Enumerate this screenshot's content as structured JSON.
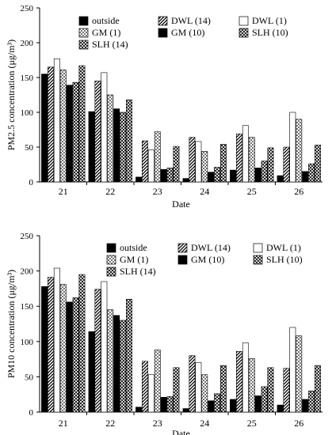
{
  "chart_data": [
    {
      "type": "bar",
      "ylabel": "PM2.5 concentration (μg/m³)",
      "xlabel": "Date",
      "ylim": [
        0,
        250
      ],
      "yticks": [
        0,
        50,
        100,
        150,
        200,
        250
      ],
      "categories": [
        "21",
        "22",
        "23",
        "24",
        "25",
        "26"
      ],
      "legend_position": "top-right",
      "series": [
        {
          "name": "outside",
          "values": [
            155,
            101,
            7,
            5,
            17,
            9
          ]
        },
        {
          "name": "DWL (14)",
          "values": [
            165,
            145,
            59,
            64,
            69,
            50
          ]
        },
        {
          "name": "DWL (1)",
          "values": [
            177,
            157,
            46,
            58,
            81,
            100
          ]
        },
        {
          "name": "GM (1)",
          "values": [
            161,
            125,
            72,
            44,
            64,
            90
          ]
        },
        {
          "name": "GM (10)",
          "values": [
            139,
            105,
            18,
            14,
            20,
            15
          ]
        },
        {
          "name": "SLH (10)",
          "values": [
            143,
            100,
            20,
            21,
            30,
            26
          ]
        },
        {
          "name": "SLH (14)",
          "values": [
            167,
            118,
            51,
            54,
            49,
            53
          ]
        }
      ]
    },
    {
      "type": "bar",
      "ylabel": "PM10 concentration (μg/m³)",
      "xlabel": "Date",
      "ylim": [
        0,
        250
      ],
      "yticks": [
        0,
        50,
        100,
        150,
        200,
        250
      ],
      "categories": [
        "21",
        "22",
        "23",
        "24",
        "25",
        "26"
      ],
      "legend_position": "top-right",
      "series": [
        {
          "name": "outside",
          "values": [
            178,
            114,
            7,
            5,
            18,
            10
          ]
        },
        {
          "name": "DWL (14)",
          "values": [
            191,
            174,
            72,
            80,
            86,
            62
          ]
        },
        {
          "name": "DWL (1)",
          "values": [
            204,
            185,
            53,
            70,
            98,
            120
          ]
        },
        {
          "name": "GM (1)",
          "values": [
            181,
            145,
            88,
            53,
            76,
            108
          ]
        },
        {
          "name": "GM (10)",
          "values": [
            156,
            137,
            21,
            16,
            23,
            18
          ]
        },
        {
          "name": "SLH (10)",
          "values": [
            162,
            130,
            22,
            26,
            36,
            30
          ]
        },
        {
          "name": "SLH (14)",
          "values": [
            195,
            160,
            63,
            66,
            63,
            66
          ]
        }
      ]
    }
  ]
}
